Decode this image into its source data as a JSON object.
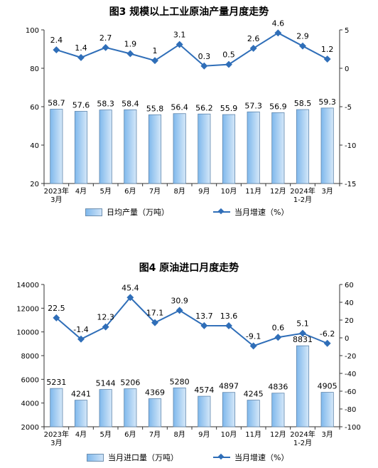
{
  "chart_data": [
    {
      "type": "bar",
      "title": "图3 规模以上工业原油产量月度走势",
      "categories": [
        "2023年\n3月",
        "4月",
        "5月",
        "6月",
        "7月",
        "8月",
        "9月",
        "10月",
        "11月",
        "12月",
        "2024年\n1-2月",
        "3月"
      ],
      "series": [
        {
          "name": "日均产量（万吨）",
          "type": "bar",
          "axis": "left",
          "values": [
            58.7,
            57.6,
            58.3,
            58.4,
            55.8,
            56.4,
            56.2,
            55.9,
            57.3,
            56.9,
            58.5,
            59.3
          ]
        },
        {
          "name": "当月增速（%）",
          "type": "line",
          "axis": "right",
          "values": [
            2.4,
            1.4,
            2.7,
            1.9,
            1.0,
            3.1,
            0.3,
            0.5,
            2.6,
            4.6,
            2.9,
            1.2
          ]
        }
      ],
      "ylim_left": [
        20,
        100
      ],
      "yticks_left": [
        20,
        40,
        60,
        80,
        100
      ],
      "ylim_right": [
        -15,
        5
      ],
      "yticks_right": [
        -15,
        -10,
        -5,
        0,
        5
      ],
      "grid": false,
      "legend": "bottom"
    },
    {
      "type": "bar",
      "title": "图4 原油进口月度走势",
      "categories": [
        "2023年\n3月",
        "4月",
        "5月",
        "6月",
        "7月",
        "8月",
        "9月",
        "10月",
        "11月",
        "12月",
        "2024年\n1-2月",
        "3月"
      ],
      "series": [
        {
          "name": "当月进口量（万吨）",
          "type": "bar",
          "axis": "left",
          "values": [
            5231,
            4241,
            5144,
            5206,
            4369,
            5280,
            4574,
            4897,
            4245,
            4836,
            8831,
            4905
          ]
        },
        {
          "name": "当月增速（%）",
          "type": "line",
          "axis": "right",
          "values": [
            22.5,
            -1.4,
            12.3,
            45.4,
            17.1,
            30.9,
            13.7,
            13.6,
            -9.1,
            0.6,
            5.1,
            -6.2
          ]
        }
      ],
      "ylim_left": [
        2000,
        14000
      ],
      "yticks_left": [
        2000,
        4000,
        6000,
        8000,
        10000,
        12000,
        14000
      ],
      "ylim_right": [
        -100,
        60
      ],
      "yticks_right": [
        -100,
        -80,
        -60,
        -40,
        -20,
        0,
        20,
        40,
        60
      ],
      "grid": false,
      "legend": "bottom"
    }
  ],
  "colors": {
    "bar_fill_start": "#7fb8ec",
    "bar_fill_end": "#d5e8f9",
    "bar_stroke": "#5f86ad",
    "line": "#2f6eb8"
  }
}
